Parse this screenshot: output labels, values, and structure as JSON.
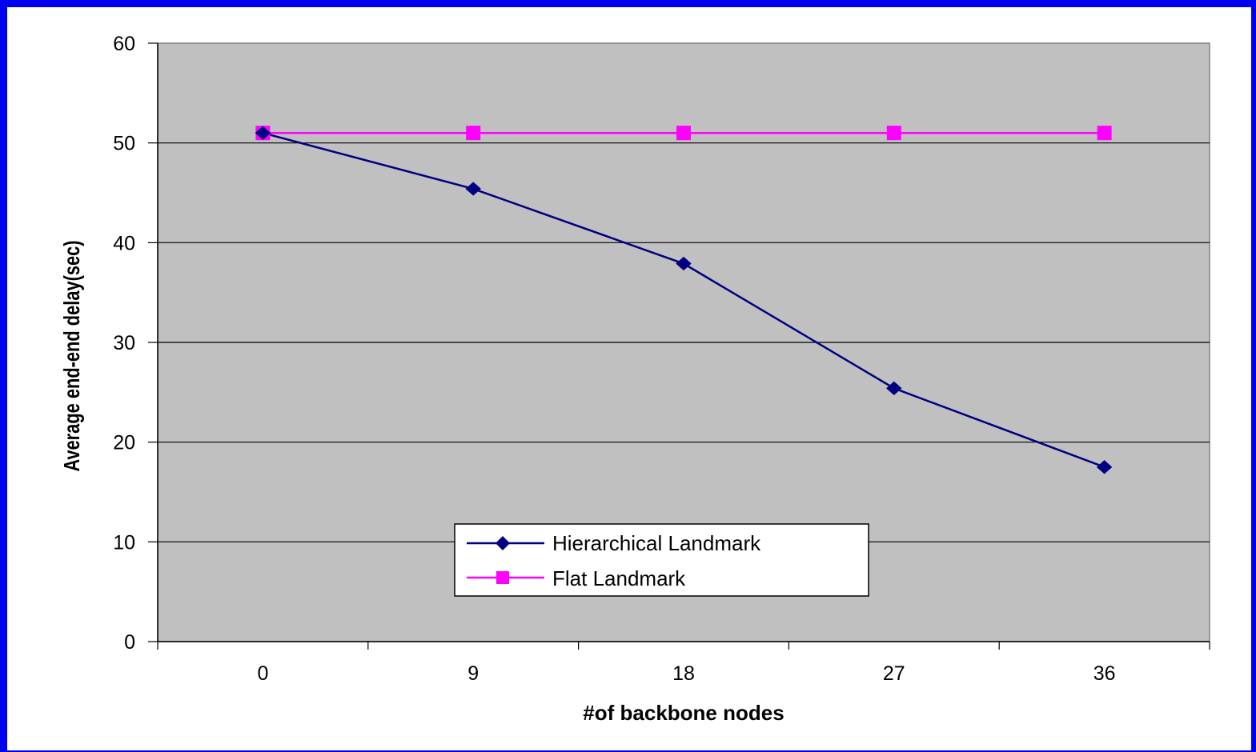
{
  "chart_data": {
    "type": "line",
    "title": "",
    "xlabel": "#of backbone nodes",
    "ylabel": "Average end-end delay(sec)",
    "categories": [
      "0",
      "9",
      "18",
      "27",
      "36"
    ],
    "ylim": [
      0,
      60
    ],
    "yticks": [
      "0",
      "10",
      "20",
      "30",
      "40",
      "50",
      "60"
    ],
    "grid": "horizontal",
    "legend_position": "bottom-center",
    "plot_background": "#c0c0c0",
    "series": [
      {
        "name": "Hierarchical Landmark",
        "values": [
          51,
          45.4,
          37.9,
          25.4,
          17.5
        ],
        "color": "#000080",
        "marker": "diamond"
      },
      {
        "name": "Flat Landmark",
        "values": [
          51,
          51,
          51,
          51,
          51
        ],
        "color": "#ff00ff",
        "marker": "square"
      }
    ]
  }
}
